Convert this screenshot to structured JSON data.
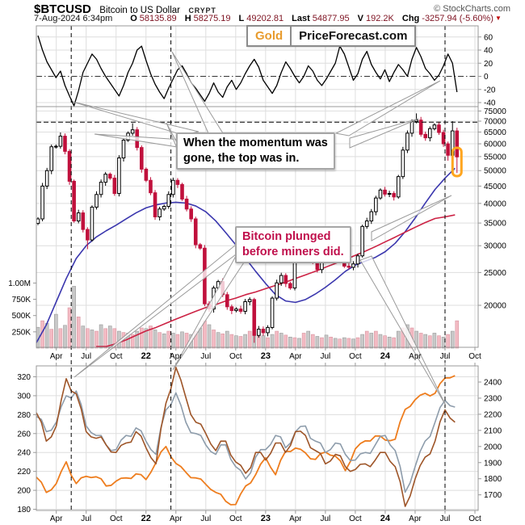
{
  "header": {
    "symbol": "$BTCUSD",
    "name": "Bitcoin to US Dollar",
    "exchange": "CRYPT",
    "source": "© StockCharts.com",
    "datetime": "7-Aug-2024 6:34pm",
    "quote": [
      {
        "label": "O",
        "value": "58135.89"
      },
      {
        "label": "H",
        "value": "58275.19"
      },
      {
        "label": "L",
        "value": "49202.81"
      },
      {
        "label": "Last",
        "value": "54877.95"
      },
      {
        "label": "V",
        "value": "192.2K"
      },
      {
        "label": "Chg",
        "value": "-3257.94 (-5.60%)"
      }
    ],
    "direction_icon": "down-triangle",
    "direction_color": "#c00000"
  },
  "badge": {
    "gold": "Gold",
    "site": "PriceForecast.com",
    "gold_color": "#e89b2d"
  },
  "annotations": {
    "momentum": {
      "line1": "When the momentum was",
      "line2": "gone, the top was in.",
      "color": "#000000"
    },
    "miners": {
      "line1": "Bitcoin plunged",
      "line2": "before miners did.",
      "color": "#c0104c"
    }
  },
  "markers": {
    "vline_months": [
      3.5,
      13.5,
      41.0
    ],
    "hline_price": 69500,
    "highlight_color": "#ffa51e"
  },
  "chart_data": [
    {
      "panel": "momentum",
      "type": "line",
      "y_ticks": [
        60,
        40,
        20,
        0,
        -20,
        -40
      ],
      "zero_line": "dash-dot",
      "series": [
        {
          "name": "momentum",
          "color": "#000000",
          "values": [
            62,
            40,
            22,
            10,
            -2,
            8,
            -14,
            -30,
            -46,
            -22,
            6,
            20,
            34,
            26,
            12,
            0,
            -10,
            -20,
            -30,
            -14,
            6,
            20,
            40,
            46,
            24,
            4,
            -12,
            -24,
            -34,
            -18,
            -4,
            10,
            16,
            4,
            -10,
            -18,
            -28,
            -38,
            -26,
            -10,
            -24,
            -32,
            -16,
            -6,
            -20,
            -10,
            4,
            16,
            26,
            14,
            -6,
            -16,
            -26,
            -14,
            6,
            22,
            12,
            0,
            -10,
            0,
            16,
            8,
            -6,
            -14,
            -4,
            8,
            20,
            46,
            34,
            14,
            -6,
            4,
            26,
            38,
            18,
            6,
            -4,
            10,
            -8,
            6,
            18,
            10,
            0,
            26,
            44,
            30,
            12,
            4,
            -6,
            2,
            16,
            34,
            20,
            -24
          ]
        }
      ]
    },
    {
      "panel": "price",
      "type": "candlestick",
      "log_scale": true,
      "y_ticks": [
        75000,
        70000,
        65000,
        60000,
        55000,
        50000,
        45000,
        40000,
        35000,
        30000,
        25000,
        20000
      ],
      "x_tick_labels": [
        "Apr",
        "Jul",
        "Oct",
        "22",
        "Apr",
        "Jul",
        "Oct",
        "23",
        "Apr",
        "Jul",
        "Oct",
        "24",
        "Apr",
        "Jul",
        "Oct"
      ],
      "bold_year_labels": [
        "22",
        "23",
        "24"
      ],
      "up_fill": "#ffffff",
      "up_stroke": "#000000",
      "down_color": "#c0103c",
      "btc_close": [
        36000,
        45000,
        50000,
        58800,
        59000,
        63200,
        57000,
        46500,
        35500,
        37500,
        33500,
        31200,
        39000,
        42500,
        46200,
        48800,
        47500,
        42800,
        54500,
        61500,
        64500,
        66000,
        58500,
        50500,
        46800,
        43000,
        36500,
        38500,
        39200,
        42500,
        46800,
        45500,
        41200,
        38500,
        36000,
        30200,
        29500,
        20200,
        19500,
        22500,
        23500,
        21500,
        19800,
        19300,
        19500,
        19200,
        20500,
        20800,
        16300,
        17000,
        16600,
        17200,
        21000,
        23300,
        24500,
        23200,
        22500,
        27800,
        28500,
        29500,
        27500,
        26900,
        25500,
        30500,
        30300,
        29500,
        29200,
        28800,
        26100,
        25900,
        26500,
        28000,
        34200,
        35500,
        37800,
        41500,
        43800,
        42600,
        42800,
        41800,
        48000,
        57500,
        64500,
        69800,
        70500,
        64000,
        62500,
        66500,
        68200,
        64800,
        60000,
        55500,
        65500,
        54900
      ],
      "wick_overrides": {
        "5": {
          "hi": 64800
        },
        "11": {
          "lo": 29300
        },
        "21": {
          "hi": 69000
        },
        "48": {
          "lo": 15500
        },
        "84": {
          "hi": 73800
        },
        "91": {
          "lo": 53500
        },
        "92": {
          "hi": 70000
        },
        "93": {
          "lo": 49200
        }
      },
      "volume_ticks": [
        {
          "v": 1000,
          "label": "1.00M"
        },
        {
          "v": 750,
          "label": "750K"
        },
        {
          "v": 500,
          "label": "500K"
        },
        {
          "v": 250,
          "label": "250K"
        }
      ],
      "volume_k": [
        320,
        420,
        380,
        290,
        520,
        300,
        350,
        620,
        950,
        480,
        340,
        300,
        280,
        260,
        360,
        300,
        340,
        300,
        260,
        240,
        230,
        210,
        260,
        310,
        300,
        340,
        280,
        240,
        220,
        260,
        230,
        210,
        250,
        230,
        210,
        260,
        310,
        420,
        360,
        280,
        240,
        220,
        260,
        210,
        190,
        180,
        210,
        260,
        310,
        230,
        190,
        160,
        210,
        260,
        230,
        200,
        170,
        160,
        150,
        230,
        260,
        210,
        180,
        160,
        200,
        170,
        150,
        140,
        160,
        150,
        140,
        160,
        210,
        260,
        230,
        260,
        210,
        190,
        170,
        160,
        260,
        310,
        360,
        310,
        260,
        230,
        210,
        190,
        230,
        190,
        170,
        210,
        260,
        420
      ],
      "vol_color_a": "#c8c8c8",
      "vol_color_b": "#f3bac3",
      "moving_averages": [
        {
          "name": "ma-blue",
          "color": "#3b37ae",
          "monthly": [
            15500,
            17500,
            20500,
            24000,
            27500,
            30000,
            31800,
            33200,
            34500,
            36000,
            37500,
            38800,
            39600,
            40100,
            40300,
            40100,
            39300,
            37800,
            35500,
            32800,
            30200,
            27500,
            25200,
            23200,
            21500,
            20600,
            20400,
            20800,
            21600,
            22600,
            23800,
            25200,
            26300,
            27000,
            27700,
            28800,
            30500,
            33000,
            36200,
            40000,
            44000,
            47500,
            50800
          ]
        },
        {
          "name": "ma-red",
          "color": "#cc2244",
          "monthly": [
            null,
            null,
            null,
            null,
            null,
            null,
            14500,
            15000,
            15400,
            15800,
            16300,
            16800,
            17200,
            17700,
            18200,
            18700,
            19200,
            19700,
            20100,
            20600,
            21000,
            21500,
            21900,
            22400,
            22900,
            23400,
            24000,
            24600,
            25200,
            25900,
            26600,
            27300,
            28100,
            28900,
            29800,
            30800,
            31800,
            32900,
            34000,
            35100,
            36100,
            36500,
            37000
          ]
        }
      ]
    },
    {
      "panel": "gold-and-miners",
      "type": "line",
      "left_ticks": [
        320,
        300,
        280,
        260,
        240,
        220,
        200,
        180
      ],
      "right_ticks": [
        2400,
        2300,
        2200,
        2100,
        2000,
        1900,
        1800,
        1700
      ],
      "x_tick_labels": [
        "Apr",
        "Jul",
        "Oct",
        "22",
        "Apr",
        "Jul",
        "Oct",
        "23",
        "Apr",
        "Jul",
        "Oct",
        "24",
        "Apr",
        "Jul",
        "Oct"
      ],
      "series": [
        {
          "name": "gold",
          "axis": "right",
          "color": "#ee7d1e",
          "monthly": [
            1810,
            1715,
            1770,
            1905,
            1770,
            1815,
            1812,
            1755,
            1785,
            1805,
            1830,
            1795,
            1900,
            2000,
            1895,
            1840,
            1805,
            1765,
            1715,
            1660,
            1640,
            1755,
            1825,
            1930,
            1825,
            1970,
            1990,
            1960,
            1920,
            1965,
            1940,
            1850,
            1985,
            2035,
            2065,
            2040,
            2045,
            2230,
            2290,
            2330,
            2330,
            2425,
            2440
          ]
        },
        {
          "name": "miners-gray",
          "axis": "left",
          "color": "#8d9cab",
          "monthly": [
            278,
            262,
            272,
            300,
            305,
            268,
            258,
            248,
            243,
            258,
            266,
            252,
            238,
            285,
            303,
            272,
            260,
            248,
            238,
            248,
            225,
            212,
            235,
            243,
            258,
            245,
            262,
            268,
            252,
            240,
            250,
            238,
            232,
            240,
            248,
            258,
            242,
            198,
            225,
            252,
            272,
            295,
            288
          ]
        },
        {
          "name": "miners-brown",
          "axis": "left",
          "color": "#9e5528",
          "monthly": [
            282,
            252,
            268,
            318,
            302,
            262,
            255,
            248,
            240,
            250,
            262,
            245,
            228,
            292,
            330,
            298,
            272,
            260,
            242,
            252,
            230,
            218,
            240,
            232,
            250,
            240,
            262,
            258,
            242,
            228,
            238,
            225,
            222,
            228,
            232,
            240,
            225,
            183,
            212,
            235,
            252,
            285,
            272
          ]
        }
      ]
    }
  ]
}
